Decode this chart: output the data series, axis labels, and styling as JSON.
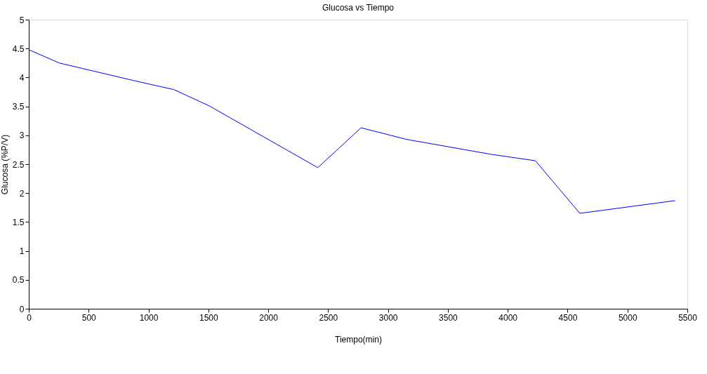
{
  "chart_data": {
    "type": "line",
    "title": "Glucosa vs Tiempo",
    "xlabel": "Tiempo(min)",
    "ylabel": "Glucosa (%P/V)",
    "x": [
      0,
      255,
      869,
      1212,
      1506,
      2414,
      2775,
      3153,
      3863,
      4231,
      4602,
      5398
    ],
    "series": [
      {
        "color": "#0000ff",
        "values": [
          4.48,
          4.25,
          3.95,
          3.79,
          3.51,
          2.44,
          3.13,
          2.93,
          2.67,
          2.56,
          1.65,
          1.87
        ]
      }
    ],
    "xlim": [
      0,
      5500
    ],
    "xticks": [
      0,
      500,
      1000,
      1500,
      2000,
      2500,
      3000,
      3500,
      4000,
      4500,
      5000,
      5500
    ],
    "ylim": [
      0,
      5
    ],
    "yticks": [
      0,
      0.5,
      1,
      1.5,
      2,
      2.5,
      3,
      3.5,
      4,
      4.5,
      5
    ],
    "grid": false,
    "legend": false,
    "marker": "none",
    "line_style": "solid"
  }
}
